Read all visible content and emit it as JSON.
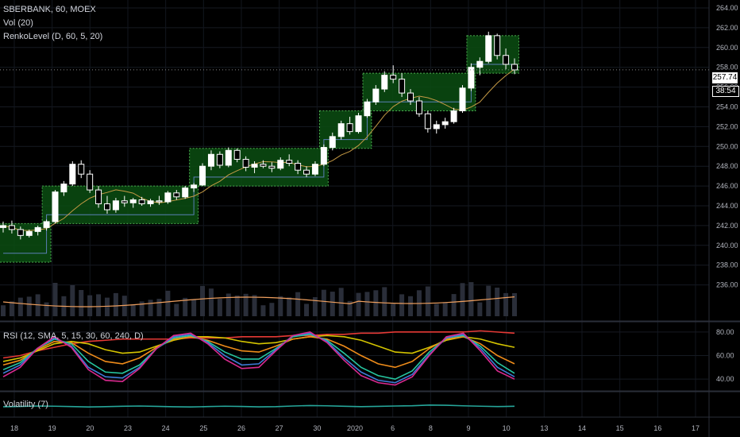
{
  "header": {
    "symbol_line": "SBERBANK, 60, MOEX",
    "vol_line": "Vol (20)",
    "renko_line": "RenkoLevel (D, 60, 5, 20)"
  },
  "panes": {
    "rsi_label": "RSI (12, SMA, 5, 15, 30, 60, 240, D)",
    "volatility_label": "Volatility (7)"
  },
  "price_axis": {
    "ticks": [
      "264.00",
      "262.00",
      "260.00",
      "258.00",
      "256.00",
      "254.00",
      "252.00",
      "250.00",
      "248.00",
      "246.00",
      "244.00",
      "242.00",
      "240.00",
      "238.00",
      "236.00"
    ],
    "current_price": "257.74",
    "countdown": "38:54"
  },
  "rsi_axis": {
    "ticks": [
      "80.00",
      "60.00",
      "40.00"
    ]
  },
  "time_axis": {
    "ticks": [
      "18",
      "19",
      "20",
      "23",
      "24",
      "25",
      "26",
      "27",
      "30",
      "2020",
      "6",
      "8",
      "9",
      "10",
      "13",
      "14",
      "15",
      "16",
      "17"
    ]
  },
  "colors": {
    "background": "#000000",
    "up_candle": "#ffffff",
    "wick": "#ffffff",
    "renko_fill": "#0b4d12",
    "renko_border": "#4caf50",
    "ma_line": "#c59a45",
    "level_line": "#5b7fb5",
    "volume_ma": "#f0a05f",
    "rsi_red": "#e53935",
    "rsi_yellow": "#d4c400",
    "rsi_orange": "#ef8c1a",
    "rsi_green": "#26c6a0",
    "rsi_blue": "#3d7bd6",
    "rsi_magenta": "#d92a8f",
    "volatility": "#26a69a"
  },
  "chart_data": {
    "type": "candlestick",
    "title": "SBERBANK, 60, MOEX",
    "ylim": [
      236,
      265
    ],
    "current_price": 257.74,
    "candles": [
      {
        "o": 241.8,
        "h": 242.4,
        "l": 241.3,
        "c": 242.0
      },
      {
        "o": 242.0,
        "h": 242.5,
        "l": 241.2,
        "c": 241.6
      },
      {
        "o": 241.6,
        "h": 241.9,
        "l": 240.6,
        "c": 241.0
      },
      {
        "o": 241.0,
        "h": 241.6,
        "l": 240.8,
        "c": 241.4
      },
      {
        "o": 241.4,
        "h": 242.0,
        "l": 241.0,
        "c": 241.8
      },
      {
        "o": 241.8,
        "h": 242.6,
        "l": 241.5,
        "c": 242.4
      },
      {
        "o": 242.4,
        "h": 245.6,
        "l": 242.2,
        "c": 245.4
      },
      {
        "o": 245.4,
        "h": 246.5,
        "l": 245.0,
        "c": 246.2
      },
      {
        "o": 246.2,
        "h": 248.5,
        "l": 246.0,
        "c": 248.2
      },
      {
        "o": 248.2,
        "h": 248.6,
        "l": 246.8,
        "c": 247.2
      },
      {
        "o": 247.2,
        "h": 247.6,
        "l": 245.3,
        "c": 245.6
      },
      {
        "o": 245.6,
        "h": 246.0,
        "l": 243.8,
        "c": 244.2
      },
      {
        "o": 244.2,
        "h": 245.0,
        "l": 243.2,
        "c": 243.6
      },
      {
        "o": 243.6,
        "h": 244.8,
        "l": 243.3,
        "c": 244.5
      },
      {
        "o": 244.5,
        "h": 245.0,
        "l": 243.9,
        "c": 244.3
      },
      {
        "o": 244.3,
        "h": 244.8,
        "l": 243.8,
        "c": 244.6
      },
      {
        "o": 244.6,
        "h": 244.9,
        "l": 244.0,
        "c": 244.2
      },
      {
        "o": 244.2,
        "h": 244.7,
        "l": 243.9,
        "c": 244.5
      },
      {
        "o": 244.5,
        "h": 245.0,
        "l": 244.1,
        "c": 244.4
      },
      {
        "o": 244.4,
        "h": 245.5,
        "l": 244.2,
        "c": 245.3
      },
      {
        "o": 245.3,
        "h": 245.6,
        "l": 244.6,
        "c": 244.9
      },
      {
        "o": 244.9,
        "h": 246.0,
        "l": 244.7,
        "c": 245.8
      },
      {
        "o": 245.8,
        "h": 246.3,
        "l": 245.4,
        "c": 246.1
      },
      {
        "o": 246.1,
        "h": 248.3,
        "l": 246.0,
        "c": 248.0
      },
      {
        "o": 248.0,
        "h": 249.6,
        "l": 247.6,
        "c": 249.2
      },
      {
        "o": 249.2,
        "h": 249.5,
        "l": 247.8,
        "c": 248.1
      },
      {
        "o": 248.1,
        "h": 249.9,
        "l": 247.9,
        "c": 249.6
      },
      {
        "o": 249.6,
        "h": 249.8,
        "l": 248.4,
        "c": 248.7
      },
      {
        "o": 248.7,
        "h": 249.0,
        "l": 247.5,
        "c": 247.9
      },
      {
        "o": 247.9,
        "h": 248.5,
        "l": 247.3,
        "c": 248.2
      },
      {
        "o": 248.2,
        "h": 248.6,
        "l": 247.8,
        "c": 248.0
      },
      {
        "o": 248.0,
        "h": 248.4,
        "l": 247.4,
        "c": 247.8
      },
      {
        "o": 247.8,
        "h": 248.9,
        "l": 247.6,
        "c": 248.6
      },
      {
        "o": 248.6,
        "h": 249.2,
        "l": 248.0,
        "c": 248.3
      },
      {
        "o": 248.3,
        "h": 248.6,
        "l": 247.2,
        "c": 247.6
      },
      {
        "o": 247.6,
        "h": 248.0,
        "l": 246.9,
        "c": 247.2
      },
      {
        "o": 247.2,
        "h": 248.5,
        "l": 247.0,
        "c": 248.2
      },
      {
        "o": 248.2,
        "h": 250.2,
        "l": 248.0,
        "c": 249.9
      },
      {
        "o": 249.9,
        "h": 251.4,
        "l": 249.6,
        "c": 251.0
      },
      {
        "o": 251.0,
        "h": 252.6,
        "l": 250.7,
        "c": 252.3
      },
      {
        "o": 252.3,
        "h": 253.0,
        "l": 251.2,
        "c": 251.5
      },
      {
        "o": 251.5,
        "h": 253.4,
        "l": 251.3,
        "c": 253.1
      },
      {
        "o": 253.1,
        "h": 254.8,
        "l": 252.9,
        "c": 254.5
      },
      {
        "o": 254.5,
        "h": 256.2,
        "l": 254.2,
        "c": 255.8
      },
      {
        "o": 255.8,
        "h": 257.6,
        "l": 255.5,
        "c": 257.2
      },
      {
        "o": 257.2,
        "h": 258.2,
        "l": 256.4,
        "c": 256.8
      },
      {
        "o": 256.8,
        "h": 257.4,
        "l": 255.0,
        "c": 255.4
      },
      {
        "o": 255.4,
        "h": 255.8,
        "l": 254.2,
        "c": 254.6
      },
      {
        "o": 254.6,
        "h": 255.0,
        "l": 253.0,
        "c": 253.3
      },
      {
        "o": 253.3,
        "h": 253.6,
        "l": 251.4,
        "c": 251.8
      },
      {
        "o": 251.8,
        "h": 252.6,
        "l": 251.3,
        "c": 252.2
      },
      {
        "o": 252.2,
        "h": 252.9,
        "l": 251.8,
        "c": 252.5
      },
      {
        "o": 252.5,
        "h": 253.9,
        "l": 252.3,
        "c": 253.6
      },
      {
        "o": 253.6,
        "h": 256.2,
        "l": 253.4,
        "c": 255.9
      },
      {
        "o": 255.9,
        "h": 258.4,
        "l": 255.6,
        "c": 258.0
      },
      {
        "o": 258.0,
        "h": 259.0,
        "l": 257.2,
        "c": 258.6
      },
      {
        "o": 258.6,
        "h": 261.6,
        "l": 258.4,
        "c": 261.2
      },
      {
        "o": 261.2,
        "h": 261.4,
        "l": 258.8,
        "c": 259.2
      },
      {
        "o": 259.2,
        "h": 259.9,
        "l": 257.8,
        "c": 258.3
      },
      {
        "o": 258.3,
        "h": 258.9,
        "l": 257.3,
        "c": 257.74
      }
    ],
    "renko_boxes": [
      {
        "from_bar": 0,
        "to_bar": 5,
        "low": 238.3,
        "high": 242.2
      },
      {
        "from_bar": 5,
        "to_bar": 22,
        "low": 242.2,
        "high": 246.0
      },
      {
        "from_bar": 22,
        "to_bar": 37,
        "low": 246.0,
        "high": 249.8
      },
      {
        "from_bar": 37,
        "to_bar": 42,
        "low": 249.8,
        "high": 253.6
      },
      {
        "from_bar": 42,
        "to_bar": 54,
        "low": 253.6,
        "high": 257.4
      },
      {
        "from_bar": 54,
        "to_bar": 59,
        "low": 257.4,
        "high": 261.2
      }
    ],
    "rsi": {
      "ylim": [
        30,
        88
      ],
      "series": [
        {
          "color_key": "rsi_red",
          "values": [
            58,
            60,
            64,
            67,
            70,
            72,
            73,
            74,
            74,
            74,
            74,
            75,
            75,
            75,
            76,
            76,
            76,
            77,
            77,
            78,
            78,
            79,
            79,
            80,
            80,
            80,
            80,
            80,
            81,
            80,
            79
          ]
        },
        {
          "color_key": "rsi_yellow",
          "values": [
            55,
            58,
            64,
            70,
            72,
            70,
            65,
            62,
            63,
            68,
            73,
            76,
            76,
            75,
            72,
            70,
            71,
            74,
            76,
            77,
            76,
            73,
            68,
            63,
            62,
            67,
            73,
            76,
            74,
            70,
            67
          ]
        },
        {
          "color_key": "rsi_orange",
          "values": [
            52,
            56,
            65,
            72,
            71,
            62,
            55,
            53,
            58,
            67,
            74,
            76,
            73,
            68,
            64,
            63,
            68,
            74,
            76,
            74,
            68,
            60,
            53,
            50,
            55,
            66,
            74,
            76,
            70,
            60,
            53
          ]
        },
        {
          "color_key": "rsi_green",
          "values": [
            48,
            54,
            66,
            74,
            70,
            55,
            46,
            45,
            52,
            66,
            75,
            77,
            72,
            63,
            57,
            57,
            66,
            76,
            78,
            73,
            62,
            50,
            43,
            40,
            47,
            63,
            75,
            77,
            68,
            54,
            45
          ]
        },
        {
          "color_key": "rsi_blue",
          "values": [
            45,
            52,
            66,
            75,
            68,
            50,
            42,
            41,
            50,
            66,
            76,
            78,
            71,
            60,
            52,
            53,
            65,
            77,
            79,
            72,
            58,
            46,
            39,
            37,
            44,
            61,
            75,
            78,
            66,
            50,
            42
          ]
        },
        {
          "color_key": "rsi_magenta",
          "values": [
            42,
            50,
            66,
            76,
            67,
            48,
            39,
            38,
            49,
            66,
            77,
            79,
            70,
            57,
            49,
            50,
            64,
            77,
            80,
            71,
            56,
            43,
            37,
            35,
            42,
            60,
            76,
            79,
            64,
            47,
            40
          ]
        }
      ]
    },
    "volatility": {
      "values": [
        0.42,
        0.45,
        0.5,
        0.48,
        0.44,
        0.4,
        0.43,
        0.47,
        0.5,
        0.46,
        0.42,
        0.4,
        0.44,
        0.48,
        0.45,
        0.41,
        0.43,
        0.5,
        0.55,
        0.52,
        0.47,
        0.43,
        0.46,
        0.5,
        0.53,
        0.6,
        0.58,
        0.52,
        0.48,
        0.44,
        0.47
      ]
    }
  }
}
